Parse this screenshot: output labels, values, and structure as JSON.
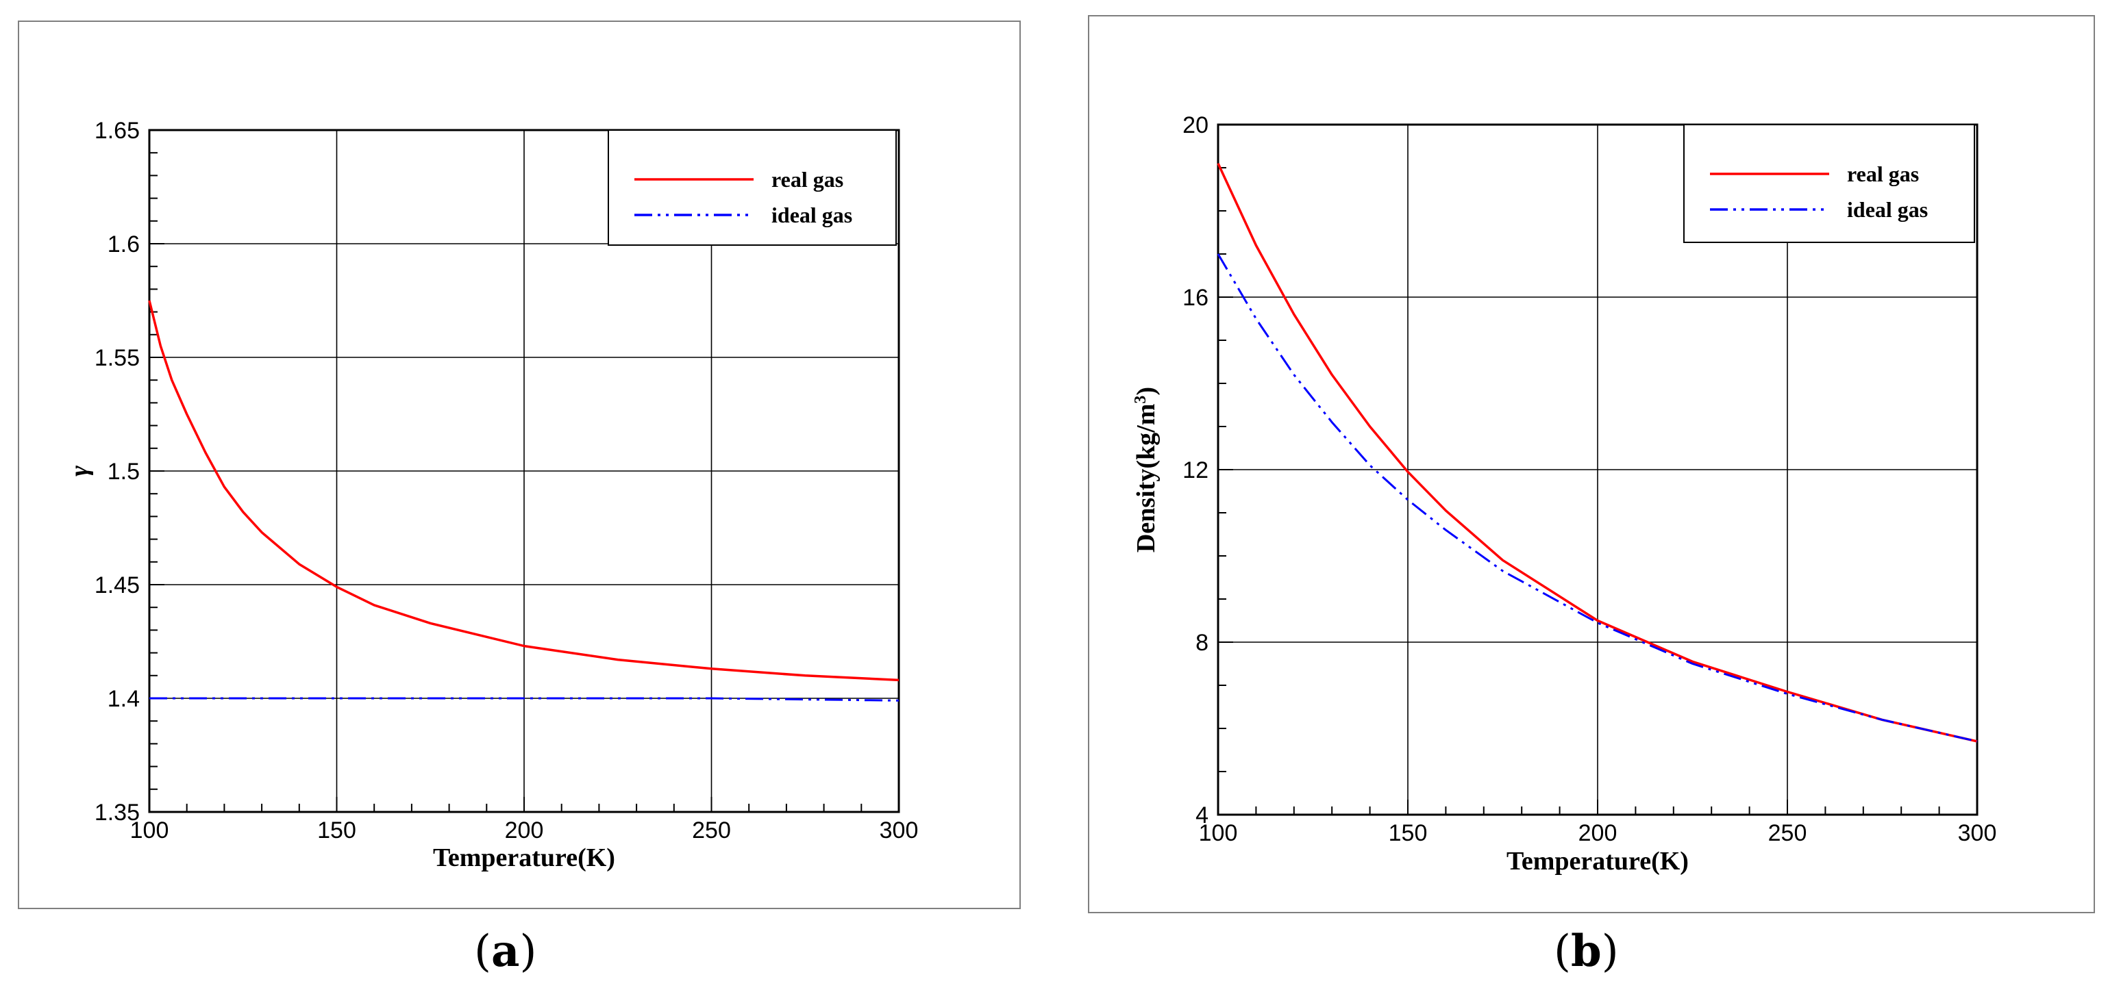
{
  "panels": {
    "a": {
      "label_open": "(",
      "label_letter": "a",
      "label_close": ")"
    },
    "b": {
      "label_open": "(",
      "label_letter": "b",
      "label_close": ")"
    }
  },
  "colors": {
    "real": "#ff0000",
    "ideal": "#0000ff",
    "grid": "#000000",
    "frame": "#7f7f7f"
  },
  "chart_data": [
    {
      "type": "line",
      "panel": "a",
      "title": "",
      "xlabel": "Temperature(K)",
      "ylabel": "γ",
      "xlim": [
        100,
        300
      ],
      "ylim": [
        1.35,
        1.65
      ],
      "xticks": [
        100,
        150,
        200,
        250,
        300
      ],
      "yticks": [
        1.35,
        1.4,
        1.45,
        1.5,
        1.55,
        1.6,
        1.65
      ],
      "ytick_labels": [
        "1.35",
        "1.4",
        "1.45",
        "1.5",
        "1.55",
        "1.6",
        "1.65"
      ],
      "grid": true,
      "legend_position": "top-right",
      "series": [
        {
          "name": "real gas",
          "style": "solid",
          "x": [
            100,
            103,
            106,
            110,
            115,
            120,
            125,
            130,
            140,
            150,
            160,
            175,
            200,
            225,
            250,
            275,
            300
          ],
          "y": [
            1.575,
            1.555,
            1.54,
            1.525,
            1.508,
            1.493,
            1.482,
            1.473,
            1.459,
            1.449,
            1.441,
            1.433,
            1.423,
            1.417,
            1.413,
            1.41,
            1.408
          ]
        },
        {
          "name": "ideal gas",
          "style": "dashdotdot",
          "x": [
            100,
            150,
            200,
            250,
            300
          ],
          "y": [
            1.4,
            1.4,
            1.4,
            1.4,
            1.399
          ]
        }
      ]
    },
    {
      "type": "line",
      "panel": "b",
      "title": "",
      "xlabel": "Temperature(K)",
      "ylabel": "Density(kg/m",
      "ylabel_sup": "3",
      "ylabel_end": ")",
      "xlim": [
        100,
        300
      ],
      "ylim": [
        4,
        20
      ],
      "xticks": [
        100,
        150,
        200,
        250,
        300
      ],
      "yticks": [
        4,
        8,
        12,
        16,
        20
      ],
      "ytick_labels": [
        "4",
        "8",
        "12",
        "16",
        "20"
      ],
      "grid": true,
      "legend_position": "top-right",
      "series": [
        {
          "name": "real gas",
          "style": "solid",
          "x": [
            100,
            110,
            120,
            130,
            140,
            150,
            160,
            175,
            200,
            225,
            250,
            275,
            300
          ],
          "y": [
            19.1,
            17.2,
            15.6,
            14.2,
            13.0,
            11.95,
            11.05,
            9.9,
            8.5,
            7.55,
            6.85,
            6.2,
            5.7
          ]
        },
        {
          "name": "ideal gas",
          "style": "dashdotdot",
          "x": [
            100,
            110,
            120,
            130,
            140,
            150,
            160,
            175,
            200,
            225,
            250,
            275,
            300
          ],
          "y": [
            17.0,
            15.5,
            14.2,
            13.1,
            12.1,
            11.3,
            10.6,
            9.65,
            8.45,
            7.5,
            6.8,
            6.2,
            5.7
          ]
        }
      ]
    }
  ]
}
